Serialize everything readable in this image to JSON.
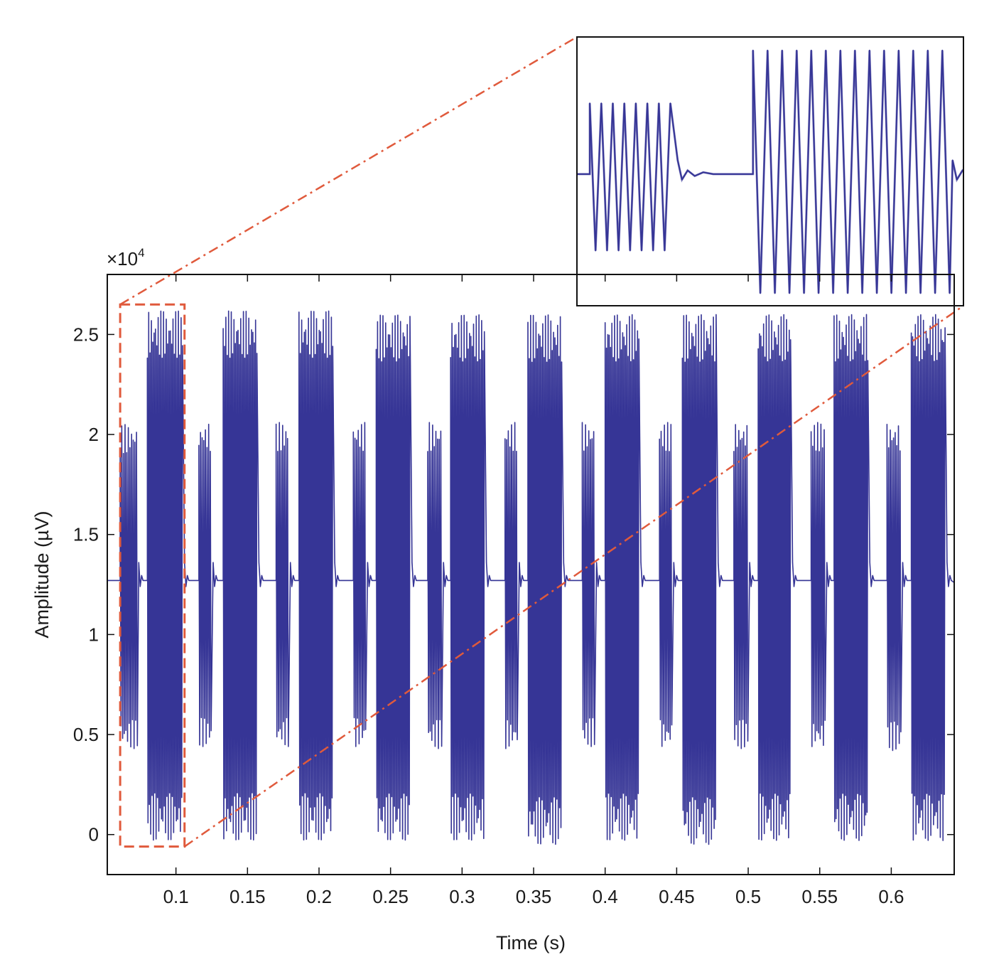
{
  "chart_data": {
    "type": "line",
    "title": "",
    "xlabel": "Time (s)",
    "ylabel": "Amplitude (µV)",
    "y_multiplier": "×10",
    "y_multiplier_exponent": "4",
    "xlim": [
      0.052,
      0.644
    ],
    "ylim": [
      -2000,
      28000
    ],
    "x_ticks": [
      0.1,
      0.15,
      0.2,
      0.25,
      0.3,
      0.35,
      0.4,
      0.45,
      0.5,
      0.55,
      0.6
    ],
    "x_tick_labels": [
      "0.1",
      "0.15",
      "0.2",
      "0.25",
      "0.3",
      "0.35",
      "0.4",
      "0.45",
      "0.5",
      "0.55",
      "0.6"
    ],
    "y_ticks": [
      0,
      5000,
      10000,
      15000,
      20000,
      25000
    ],
    "y_tick_labels": [
      "0",
      "0.5",
      "1",
      "1.5",
      "2",
      "2.5"
    ],
    "grid": false,
    "legend": "none",
    "baseline": 12700,
    "signal_color": "#363596",
    "signal_color_light": "#8a8ac4",
    "highlight_color": "#e05a3c",
    "highlight_region": {
      "x": [
        0.061,
        0.106
      ],
      "y": [
        -600,
        26500
      ]
    },
    "bursts": [
      {
        "type": "short",
        "start": 0.061,
        "end": 0.073,
        "min": 4300,
        "max": 20500
      },
      {
        "type": "long",
        "start": 0.08,
        "end": 0.105,
        "min": -300,
        "max": 26200
      },
      {
        "type": "short",
        "start": 0.116,
        "end": 0.125,
        "min": 4400,
        "max": 20600
      },
      {
        "type": "long",
        "start": 0.133,
        "end": 0.157,
        "min": -300,
        "max": 26200
      },
      {
        "type": "short",
        "start": 0.17,
        "end": 0.179,
        "min": 4400,
        "max": 20600
      },
      {
        "type": "long",
        "start": 0.186,
        "end": 0.21,
        "min": -300,
        "max": 26200
      },
      {
        "type": "short",
        "start": 0.224,
        "end": 0.233,
        "min": 4400,
        "max": 20600
      },
      {
        "type": "long",
        "start": 0.24,
        "end": 0.264,
        "min": -300,
        "max": 26000
      },
      {
        "type": "short",
        "start": 0.276,
        "end": 0.286,
        "min": 4300,
        "max": 20600
      },
      {
        "type": "long",
        "start": 0.292,
        "end": 0.316,
        "min": -300,
        "max": 26000
      },
      {
        "type": "short",
        "start": 0.33,
        "end": 0.339,
        "min": 4300,
        "max": 20600
      },
      {
        "type": "long",
        "start": 0.346,
        "end": 0.37,
        "min": -500,
        "max": 26000
      },
      {
        "type": "short",
        "start": 0.384,
        "end": 0.393,
        "min": 4400,
        "max": 20600
      },
      {
        "type": "long",
        "start": 0.4,
        "end": 0.424,
        "min": -300,
        "max": 26000
      },
      {
        "type": "short",
        "start": 0.438,
        "end": 0.447,
        "min": 4300,
        "max": 20600
      },
      {
        "type": "long",
        "start": 0.454,
        "end": 0.478,
        "min": -500,
        "max": 26000
      },
      {
        "type": "short",
        "start": 0.49,
        "end": 0.5,
        "min": 4300,
        "max": 20600
      },
      {
        "type": "long",
        "start": 0.507,
        "end": 0.53,
        "min": -300,
        "max": 26000
      },
      {
        "type": "short",
        "start": 0.544,
        "end": 0.554,
        "min": 4300,
        "max": 20600
      },
      {
        "type": "long",
        "start": 0.56,
        "end": 0.584,
        "min": -300,
        "max": 26000
      },
      {
        "type": "short",
        "start": 0.597,
        "end": 0.607,
        "min": 4200,
        "max": 20600
      },
      {
        "type": "long",
        "start": 0.614,
        "end": 0.638,
        "min": -300,
        "max": 26000
      }
    ]
  }
}
